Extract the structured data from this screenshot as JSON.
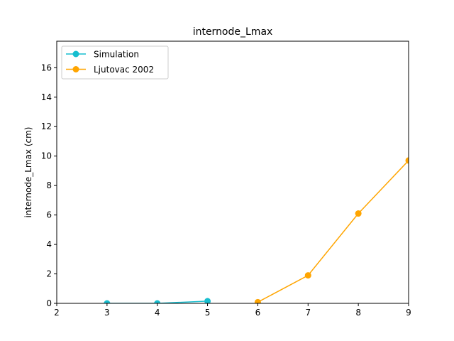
{
  "chart_data": {
    "type": "line",
    "title": "internode_Lmax",
    "xlabel": "",
    "ylabel": "internode_Lmax (cm)",
    "xlim": [
      2,
      9
    ],
    "ylim": [
      0,
      17.8
    ],
    "xticks": [
      2,
      3,
      4,
      5,
      6,
      7,
      8,
      9
    ],
    "yticks": [
      0,
      2,
      4,
      6,
      8,
      10,
      12,
      14,
      16
    ],
    "grid": false,
    "legend_position": "top-left",
    "series": [
      {
        "name": "Simulation",
        "color": "#17becf",
        "marker": "circle",
        "x": [
          3,
          4,
          5
        ],
        "y": [
          0.0,
          0.0,
          0.15
        ]
      },
      {
        "name": "Ljutovac 2002",
        "color": "#ffa500",
        "marker": "circle",
        "x": [
          6,
          7,
          8,
          9
        ],
        "y": [
          0.08,
          1.9,
          6.1,
          9.7
        ]
      }
    ]
  }
}
